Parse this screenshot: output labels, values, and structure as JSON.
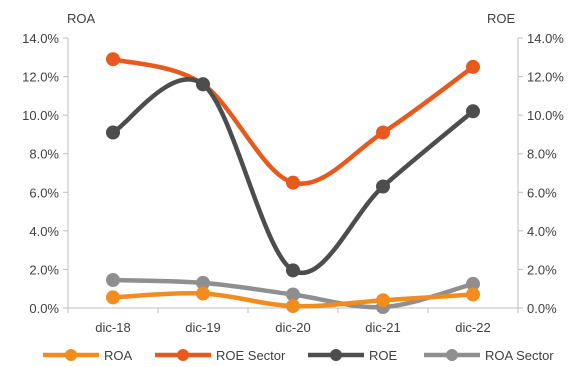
{
  "chart_data": {
    "type": "line",
    "categories": [
      "dic-18",
      "dic-19",
      "dic-20",
      "dic-21",
      "dic-22"
    ],
    "left_axis": {
      "label": "ROA",
      "ylim": [
        0,
        14
      ],
      "ticks": [
        "0.0%",
        "2.0%",
        "4.0%",
        "6.0%",
        "8.0%",
        "10.0%",
        "12.0%",
        "14.0%"
      ]
    },
    "right_axis": {
      "label": "ROE",
      "ylim": [
        0,
        14
      ],
      "ticks": [
        "0.0%",
        "2.0%",
        "4.0%",
        "6.0%",
        "8.0%",
        "10.0%",
        "12.0%",
        "14.0%"
      ]
    },
    "grid": false,
    "legend_position": "bottom",
    "series": [
      {
        "name": "ROA",
        "axis": "left",
        "color": "#F28C1E",
        "values": [
          0.55,
          0.75,
          0.1,
          0.4,
          0.7
        ]
      },
      {
        "name": "ROE Sector",
        "axis": "right",
        "color": "#E8591E",
        "values": [
          12.9,
          11.6,
          6.5,
          9.1,
          12.5
        ]
      },
      {
        "name": "ROE",
        "axis": "right",
        "color": "#4D4D4D",
        "values": [
          9.1,
          11.6,
          1.95,
          6.3,
          10.2
        ]
      },
      {
        "name": "ROA Sector",
        "axis": "left",
        "color": "#8F8F8F",
        "values": [
          1.45,
          1.3,
          0.7,
          0.05,
          1.25
        ]
      }
    ]
  }
}
